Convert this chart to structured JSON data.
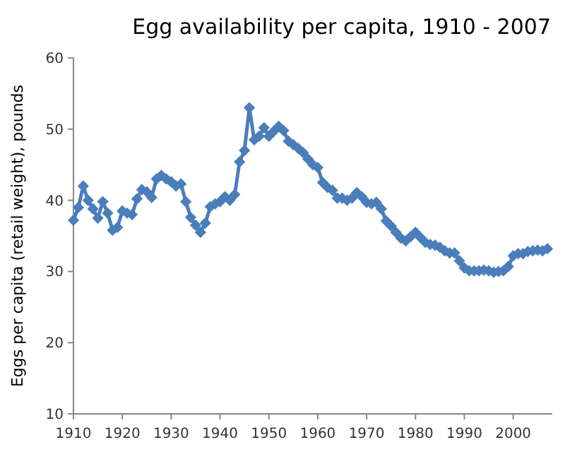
{
  "chart_data": {
    "type": "line",
    "title": "Egg availability per capita, 1910 - 2007",
    "ylabel": "Eggs per capita (retail weight), pounds",
    "x": [
      1910,
      1911,
      1912,
      1913,
      1914,
      1915,
      1916,
      1917,
      1918,
      1919,
      1920,
      1921,
      1922,
      1923,
      1924,
      1925,
      1926,
      1927,
      1928,
      1929,
      1930,
      1931,
      1932,
      1933,
      1934,
      1935,
      1936,
      1937,
      1938,
      1939,
      1940,
      1941,
      1942,
      1943,
      1944,
      1945,
      1946,
      1947,
      1948,
      1949,
      1950,
      1951,
      1952,
      1953,
      1954,
      1955,
      1956,
      1957,
      1958,
      1959,
      1960,
      1961,
      1962,
      1963,
      1964,
      1965,
      1966,
      1967,
      1968,
      1969,
      1970,
      1971,
      1972,
      1973,
      1974,
      1975,
      1976,
      1977,
      1978,
      1979,
      1980,
      1981,
      1982,
      1983,
      1984,
      1985,
      1986,
      1987,
      1988,
      1989,
      1990,
      1991,
      1992,
      1993,
      1994,
      1995,
      1996,
      1997,
      1998,
      1999,
      2000,
      2001,
      2002,
      2003,
      2004,
      2005,
      2006,
      2007
    ],
    "series": [
      {
        "color": "#4a7ebb",
        "values": [
          37.2,
          39,
          42,
          40,
          38.8,
          37.5,
          39.8,
          38.2,
          35.8,
          36.2,
          38.5,
          38.2,
          38,
          40.2,
          41.5,
          41.2,
          40.4,
          43,
          43.5,
          43,
          42.6,
          42,
          42.3,
          39.8,
          37.6,
          36.5,
          35.5,
          36.8,
          39.1,
          39.5,
          39.8,
          40.5,
          40,
          40.8,
          45.4,
          47,
          53,
          48.5,
          49,
          50.2,
          49,
          49.7,
          50.4,
          49.8,
          48.3,
          47.8,
          47.3,
          46.7,
          45.8,
          45,
          44.6,
          42.5,
          41.8,
          41.4,
          40.3,
          40.3,
          40,
          40.3,
          41.1,
          40.5,
          39.7,
          39.5,
          39.7,
          38.8,
          37.1,
          36.4,
          35.5,
          34.7,
          34.3,
          34.9,
          35.5,
          34.8,
          34.1,
          33.8,
          33.7,
          33.4,
          32.9,
          32.6,
          32.6,
          31.5,
          30.5,
          30.1,
          30.1,
          30.1,
          30.2,
          30.1,
          29.9,
          30,
          30.1,
          30.7,
          32.2,
          32.5,
          32.5,
          32.8,
          32.9,
          33,
          32.9,
          33.2
        ]
      }
    ],
    "xlim": [
      1910,
      2008
    ],
    "xticks": [
      1910,
      1920,
      1930,
      1940,
      1950,
      1960,
      1970,
      1980,
      1990,
      2000
    ],
    "ylim": [
      10,
      60
    ],
    "yticks": [
      10,
      20,
      30,
      40,
      50,
      60
    ],
    "grid": false,
    "marker": "diamond",
    "line_style": "solid"
  }
}
